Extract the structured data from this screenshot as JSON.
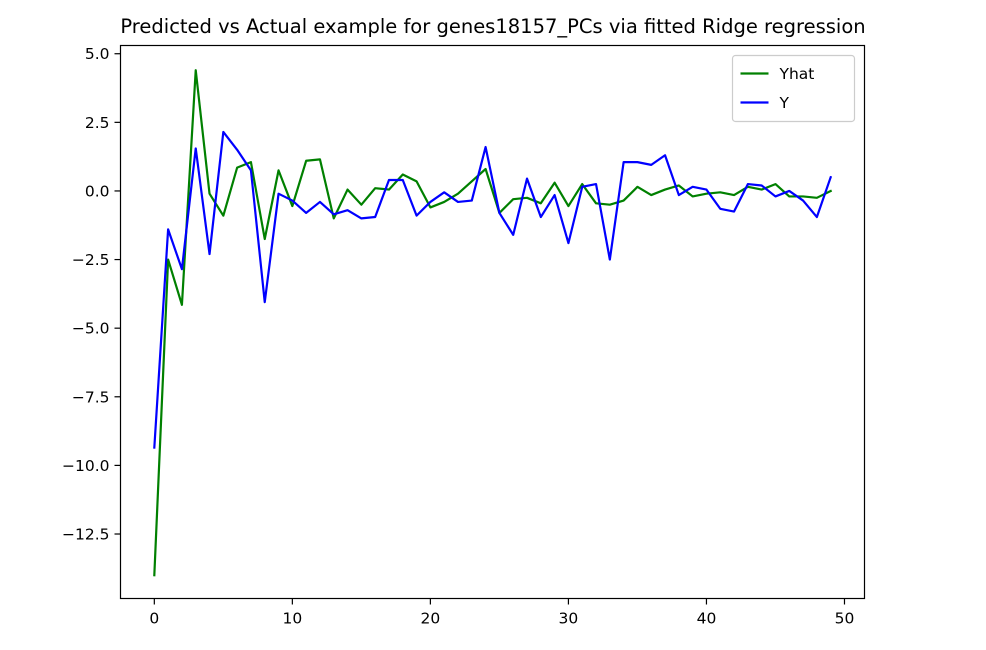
{
  "chart_data": {
    "type": "line",
    "title": "Predicted vs Actual example for genes18157_PCs via fitted Ridge regression",
    "xlabel": "",
    "ylabel": "",
    "xlim": [
      -2.45,
      51.45
    ],
    "ylim": [
      -14.85,
      5.3
    ],
    "xticks": [
      0,
      10,
      20,
      30,
      40,
      50
    ],
    "xtick_labels": [
      "0",
      "10",
      "20",
      "30",
      "40",
      "50"
    ],
    "yticks": [
      5.0,
      2.5,
      0.0,
      -2.5,
      -5.0,
      -7.5,
      -10.0,
      -12.5
    ],
    "ytick_labels": [
      "5.0",
      "2.5",
      "0.0",
      "−2.5",
      "−5.0",
      "−7.5",
      "−10.0",
      "−12.5"
    ],
    "grid": false,
    "legend_position": "upper right",
    "x": [
      0,
      1,
      2,
      3,
      4,
      5,
      6,
      7,
      8,
      9,
      10,
      11,
      12,
      13,
      14,
      15,
      16,
      17,
      18,
      19,
      20,
      21,
      22,
      23,
      24,
      25,
      26,
      27,
      28,
      29,
      30,
      31,
      32,
      33,
      34,
      35,
      36,
      37,
      38,
      39,
      40,
      41,
      42,
      43,
      44,
      45,
      46,
      47,
      48,
      49
    ],
    "series": [
      {
        "name": "Yhat",
        "color": "#008000",
        "values": [
          -14.0,
          -2.5,
          -4.15,
          4.4,
          -0.1,
          -0.9,
          0.85,
          1.05,
          -1.75,
          0.75,
          -0.55,
          1.1,
          1.15,
          -1.0,
          0.05,
          -0.5,
          0.1,
          0.05,
          0.6,
          0.35,
          -0.6,
          -0.4,
          -0.1,
          0.35,
          0.8,
          -0.8,
          -0.3,
          -0.25,
          -0.45,
          0.3,
          -0.55,
          0.25,
          -0.45,
          -0.5,
          -0.35,
          0.15,
          -0.15,
          0.05,
          0.2,
          -0.2,
          -0.1,
          -0.05,
          -0.15,
          0.15,
          0.05,
          0.25,
          -0.2,
          -0.2,
          -0.25,
          0.0
        ]
      },
      {
        "name": "Y",
        "color": "#0000ff",
        "values": [
          -9.35,
          -1.4,
          -2.85,
          1.55,
          -2.3,
          2.15,
          1.5,
          0.75,
          -4.05,
          -0.1,
          -0.35,
          -0.8,
          -0.4,
          -0.85,
          -0.7,
          -1.0,
          -0.95,
          0.4,
          0.4,
          -0.9,
          -0.4,
          -0.05,
          -0.4,
          -0.35,
          1.6,
          -0.8,
          -1.6,
          0.45,
          -0.95,
          -0.15,
          -1.9,
          0.15,
          0.25,
          -2.5,
          1.05,
          1.05,
          0.95,
          1.3,
          -0.15,
          0.15,
          0.05,
          -0.65,
          -0.75,
          0.25,
          0.2,
          -0.2,
          0.0,
          -0.35,
          -0.95,
          0.5
        ]
      }
    ]
  }
}
